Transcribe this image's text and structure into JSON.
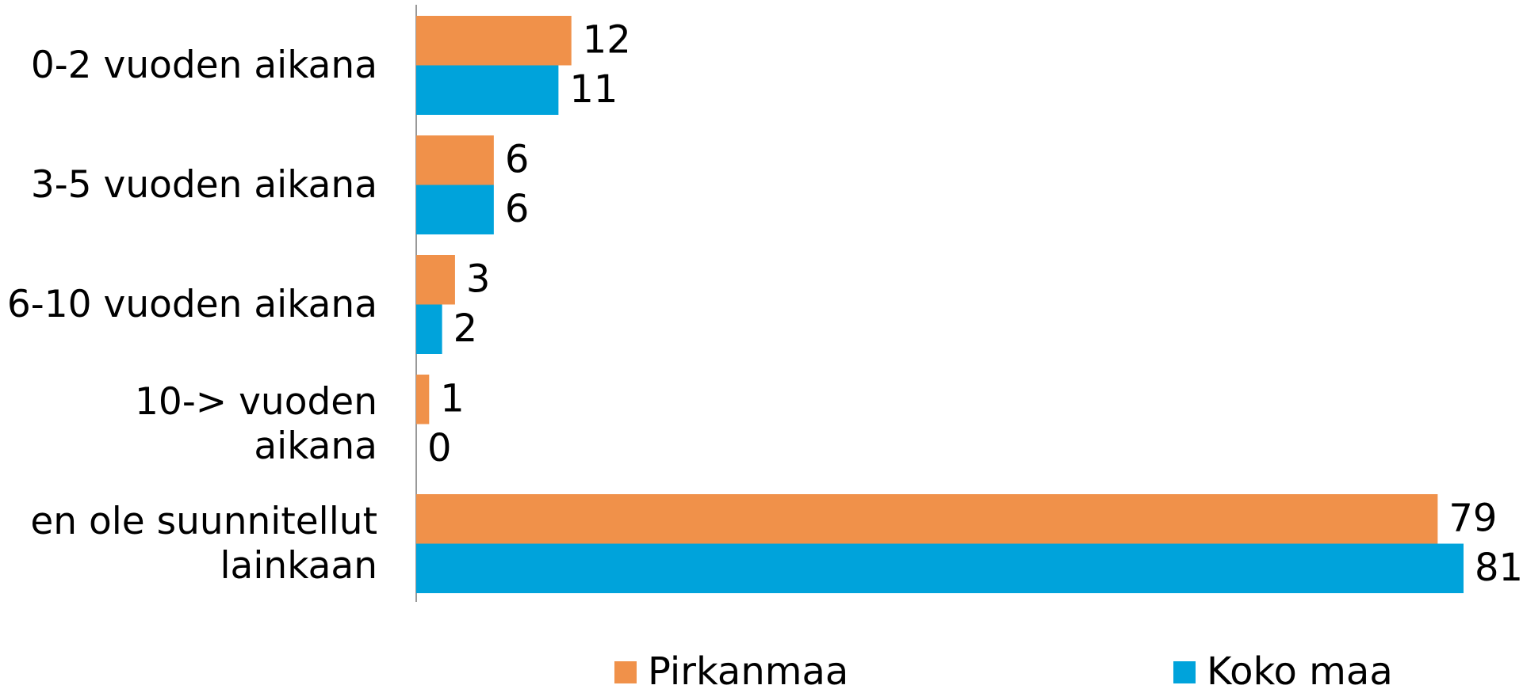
{
  "chart_data": {
    "type": "hbar",
    "categories": [
      "0-2 vuoden aikana",
      "3-5 vuoden aikana",
      "6-10 vuoden aikana",
      "10-> vuoden aikana",
      "en ole suunnitellut lainkaan"
    ],
    "series": [
      {
        "name": "Pirkanmaa",
        "color": "#f0914a",
        "values": [
          12,
          6,
          3,
          1,
          79
        ]
      },
      {
        "name": "Koko maa",
        "color": "#00a3db",
        "values": [
          11,
          6,
          2,
          0,
          81
        ]
      }
    ]
  }
}
